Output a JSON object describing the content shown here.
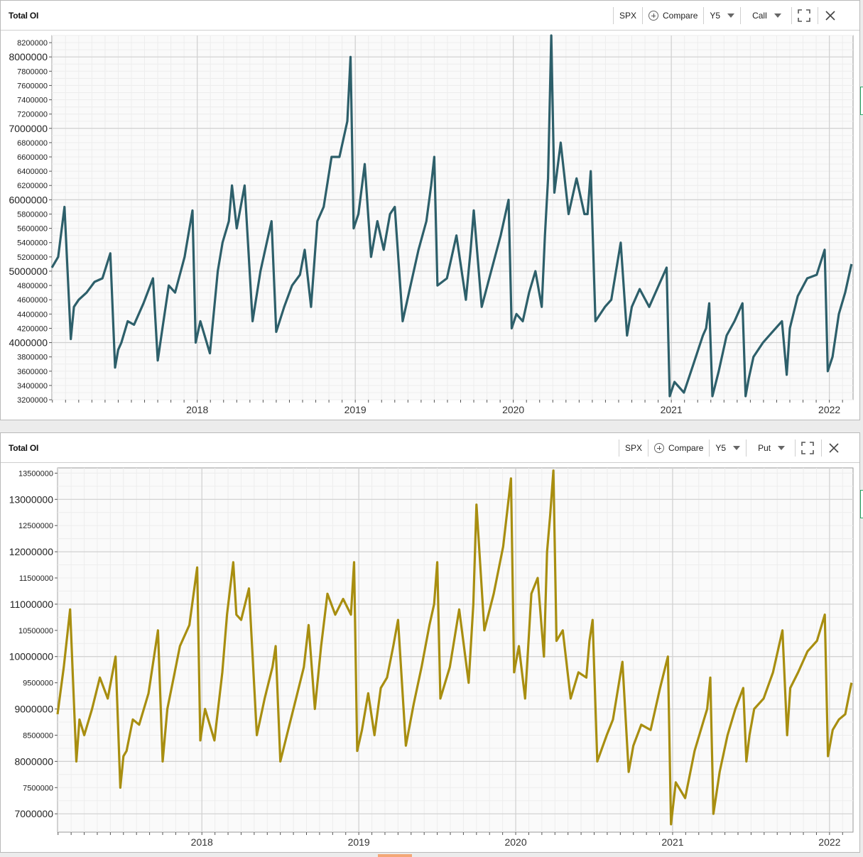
{
  "colors": {
    "call_line": "#2d5f6a",
    "put_line": "#a88e10",
    "grid_major": "#d0d0d0",
    "grid_minor": "#ededed",
    "plot_bg": "#fafafa"
  },
  "icons": [
    "plus-icon",
    "chevron-down-icon",
    "expand-icon",
    "close-icon"
  ],
  "panels": [
    {
      "title": "Total OI",
      "ticker": "SPX",
      "compare_label": "Compare",
      "period": "Y5",
      "option_type": "Call",
      "chart_data": {
        "type": "line",
        "title": "",
        "xlabel": "",
        "ylabel": "",
        "xlim": [
          2017.08,
          2022.15
        ],
        "ylim": [
          3200000,
          8300000
        ],
        "y_ticks": [
          3200000,
          3400000,
          3600000,
          3800000,
          4000000,
          4200000,
          4400000,
          4600000,
          4800000,
          5000000,
          5200000,
          5400000,
          5600000,
          5800000,
          6000000,
          6200000,
          6400000,
          6600000,
          6800000,
          7000000,
          7200000,
          7400000,
          7600000,
          7800000,
          8000000,
          8200000
        ],
        "y_tick_labels": [
          "3200000",
          "3400000",
          "3600000",
          "3800000",
          "4000000",
          "4200000",
          "4400000",
          "4600000",
          "4800000",
          "5000000",
          "5200000",
          "5400000",
          "5600000",
          "5800000",
          "6000000",
          "6200000",
          "6400000",
          "6600000",
          "6800000",
          "7000000",
          "7200000",
          "7400000",
          "7600000",
          "7800000",
          "8000000",
          "8200000"
        ],
        "y_major_ticks": [
          4000000,
          5000000,
          6000000,
          7000000,
          8000000
        ],
        "x_ticks": [
          2018,
          2019,
          2020,
          2021,
          2022
        ],
        "x_tick_labels": [
          "2018",
          "2019",
          "2020",
          "2021",
          "2022"
        ],
        "grid": true,
        "series": [
          {
            "x": [
              2017.08,
              2017.12,
              2017.16,
              2017.2,
              2017.22,
              2017.25,
              2017.3,
              2017.35,
              2017.4,
              2017.45,
              2017.48,
              2017.5,
              2017.52,
              2017.56,
              2017.6,
              2017.66,
              2017.72,
              2017.75,
              2017.78,
              2017.82,
              2017.86,
              2017.92,
              2017.97,
              2017.99,
              2018.02,
              2018.08,
              2018.13,
              2018.16,
              2018.2,
              2018.22,
              2018.25,
              2018.3,
              2018.35,
              2018.4,
              2018.45,
              2018.47,
              2018.5,
              2018.55,
              2018.6,
              2018.65,
              2018.68,
              2018.72,
              2018.76,
              2018.8,
              2018.85,
              2018.9,
              2018.95,
              2018.97,
              2018.99,
              2019.02,
              2019.06,
              2019.1,
              2019.14,
              2019.18,
              2019.22,
              2019.25,
              2019.3,
              2019.35,
              2019.4,
              2019.45,
              2019.48,
              2019.5,
              2019.52,
              2019.58,
              2019.64,
              2019.7,
              2019.73,
              2019.75,
              2019.8,
              2019.86,
              2019.92,
              2019.97,
              2019.99,
              2020.02,
              2020.06,
              2020.1,
              2020.14,
              2020.18,
              2020.2,
              2020.22,
              2020.24,
              2020.26,
              2020.3,
              2020.35,
              2020.4,
              2020.45,
              2020.47,
              2020.49,
              2020.52,
              2020.58,
              2020.62,
              2020.68,
              2020.72,
              2020.75,
              2020.8,
              2020.86,
              2020.92,
              2020.97,
              2020.99,
              2021.02,
              2021.08,
              2021.14,
              2021.2,
              2021.22,
              2021.24,
              2021.26,
              2021.3,
              2021.35,
              2021.4,
              2021.45,
              2021.47,
              2021.49,
              2021.52,
              2021.58,
              2021.64,
              2021.7,
              2021.73,
              2021.75,
              2021.8,
              2021.86,
              2021.92,
              2021.97,
              2021.99,
              2022.02,
              2022.06,
              2022.1,
              2022.14
            ],
            "y": [
              5050000,
              5200000,
              5900000,
              4050000,
              4500000,
              4600000,
              4700000,
              4850000,
              4900000,
              5250000,
              3650000,
              3900000,
              4000000,
              4300000,
              4250000,
              4550000,
              4900000,
              3750000,
              4200000,
              4800000,
              4700000,
              5200000,
              5850000,
              4000000,
              4300000,
              3850000,
              5000000,
              5400000,
              5700000,
              6200000,
              5600000,
              6200000,
              4300000,
              5000000,
              5500000,
              5700000,
              4150000,
              4500000,
              4800000,
              4950000,
              5300000,
              4500000,
              5700000,
              5900000,
              6600000,
              6600000,
              7100000,
              8000000,
              5600000,
              5800000,
              6500000,
              5200000,
              5700000,
              5300000,
              5800000,
              5900000,
              4300000,
              4800000,
              5300000,
              5700000,
              6200000,
              6600000,
              4800000,
              4900000,
              5500000,
              4600000,
              5300000,
              5850000,
              4500000,
              5000000,
              5500000,
              6000000,
              4200000,
              4400000,
              4300000,
              4700000,
              5000000,
              4500000,
              5500000,
              6300000,
              8300000,
              6100000,
              6800000,
              5800000,
              6300000,
              5800000,
              5800000,
              6400000,
              4300000,
              4500000,
              4600000,
              5400000,
              4100000,
              4500000,
              4750000,
              4500000,
              4800000,
              5050000,
              3250000,
              3450000,
              3300000,
              3700000,
              4100000,
              4200000,
              4550000,
              3250000,
              3600000,
              4100000,
              4300000,
              4550000,
              3250000,
              3500000,
              3800000,
              4000000,
              4150000,
              4300000,
              3550000,
              4200000,
              4650000,
              4900000,
              4950000,
              5300000,
              3600000,
              3800000,
              4400000,
              4700000,
              5100000
            ]
          }
        ]
      }
    },
    {
      "title": "Total OI",
      "ticker": "SPX",
      "compare_label": "Compare",
      "period": "Y5",
      "option_type": "Put",
      "chart_data": {
        "type": "line",
        "title": "",
        "xlabel": "",
        "ylabel": "",
        "xlim": [
          2017.08,
          2022.15
        ],
        "ylim": [
          6650000,
          13600000
        ],
        "y_ticks": [
          7000000,
          7500000,
          8000000,
          8500000,
          9000000,
          9500000,
          10000000,
          10500000,
          11000000,
          11500000,
          12000000,
          12500000,
          13000000,
          13500000
        ],
        "y_tick_labels": [
          "7000000",
          "7500000",
          "8000000",
          "8500000",
          "9000000",
          "9500000",
          "10000000",
          "10500000",
          "11000000",
          "11500000",
          "12000000",
          "12500000",
          "13000000",
          "13500000"
        ],
        "y_major_ticks": [
          7000000,
          8000000,
          9000000,
          10000000,
          11000000,
          12000000,
          13000000
        ],
        "x_ticks": [
          2018,
          2019,
          2020,
          2021,
          2022
        ],
        "x_tick_labels": [
          "2018",
          "2019",
          "2020",
          "2021",
          "2022"
        ],
        "grid": true,
        "series": [
          {
            "x": [
              2017.08,
              2017.12,
              2017.16,
              2017.2,
              2017.22,
              2017.25,
              2017.3,
              2017.35,
              2017.4,
              2017.45,
              2017.48,
              2017.5,
              2017.52,
              2017.56,
              2017.6,
              2017.66,
              2017.72,
              2017.75,
              2017.78,
              2017.82,
              2017.86,
              2017.92,
              2017.97,
              2017.99,
              2018.02,
              2018.08,
              2018.13,
              2018.16,
              2018.2,
              2018.22,
              2018.25,
              2018.3,
              2018.35,
              2018.4,
              2018.45,
              2018.47,
              2018.5,
              2018.55,
              2018.6,
              2018.65,
              2018.68,
              2018.72,
              2018.76,
              2018.8,
              2018.85,
              2018.9,
              2018.95,
              2018.97,
              2018.99,
              2019.02,
              2019.06,
              2019.1,
              2019.14,
              2019.18,
              2019.22,
              2019.25,
              2019.3,
              2019.35,
              2019.4,
              2019.45,
              2019.48,
              2019.5,
              2019.52,
              2019.58,
              2019.64,
              2019.7,
              2019.73,
              2019.75,
              2019.8,
              2019.86,
              2019.92,
              2019.97,
              2019.99,
              2020.02,
              2020.06,
              2020.1,
              2020.14,
              2020.18,
              2020.2,
              2020.22,
              2020.24,
              2020.26,
              2020.3,
              2020.35,
              2020.4,
              2020.45,
              2020.47,
              2020.49,
              2020.52,
              2020.58,
              2020.62,
              2020.68,
              2020.72,
              2020.75,
              2020.8,
              2020.86,
              2020.92,
              2020.97,
              2020.99,
              2021.02,
              2021.08,
              2021.14,
              2021.2,
              2021.22,
              2021.24,
              2021.26,
              2021.3,
              2021.35,
              2021.4,
              2021.45,
              2021.47,
              2021.49,
              2021.52,
              2021.58,
              2021.64,
              2021.7,
              2021.73,
              2021.75,
              2021.8,
              2021.86,
              2021.92,
              2021.97,
              2021.99,
              2022.02,
              2022.06,
              2022.1,
              2022.14
            ],
            "y": [
              8900000,
              9800000,
              10900000,
              8000000,
              8800000,
              8500000,
              9000000,
              9600000,
              9200000,
              10000000,
              7500000,
              8100000,
              8200000,
              8800000,
              8700000,
              9300000,
              10500000,
              8000000,
              9000000,
              9600000,
              10200000,
              10600000,
              11700000,
              8400000,
              9000000,
              8400000,
              9700000,
              10800000,
              11800000,
              10800000,
              10700000,
              11300000,
              8500000,
              9200000,
              9800000,
              10200000,
              8000000,
              8600000,
              9200000,
              9800000,
              10600000,
              9000000,
              10200000,
              11200000,
              10800000,
              11100000,
              10800000,
              11800000,
              8200000,
              8600000,
              9300000,
              8500000,
              9400000,
              9600000,
              10200000,
              10700000,
              8300000,
              9100000,
              9800000,
              10600000,
              11000000,
              11800000,
              9200000,
              9800000,
              10900000,
              9500000,
              11000000,
              12900000,
              10500000,
              11200000,
              12100000,
              13400000,
              9700000,
              10200000,
              9200000,
              11200000,
              11500000,
              10000000,
              12000000,
              12700000,
              13550000,
              10300000,
              10500000,
              9200000,
              9700000,
              9600000,
              10300000,
              10700000,
              8000000,
              8500000,
              8800000,
              9900000,
              7800000,
              8300000,
              8700000,
              8600000,
              9400000,
              10000000,
              6800000,
              7600000,
              7300000,
              8200000,
              8800000,
              9000000,
              9600000,
              7000000,
              7800000,
              8500000,
              9000000,
              9400000,
              8000000,
              8500000,
              9000000,
              9200000,
              9700000,
              10500000,
              8500000,
              9400000,
              9700000,
              10100000,
              10300000,
              10800000,
              8100000,
              8600000,
              8800000,
              8900000,
              9500000
            ]
          }
        ]
      }
    }
  ]
}
